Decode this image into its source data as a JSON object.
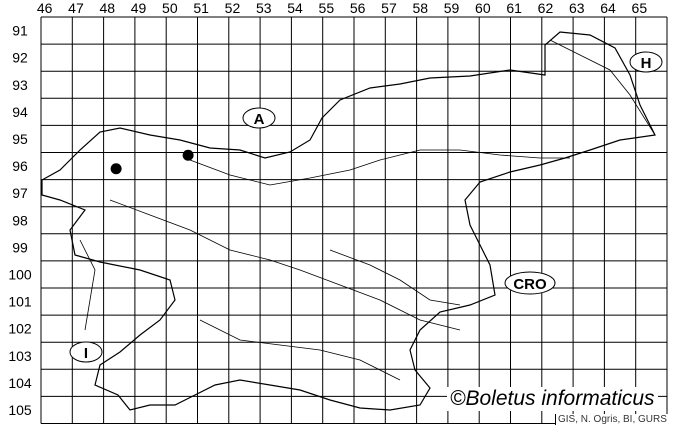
{
  "map": {
    "columns": [
      "46",
      "47",
      "48",
      "49",
      "50",
      "51",
      "52",
      "53",
      "54",
      "55",
      "56",
      "57",
      "58",
      "59",
      "60",
      "61",
      "62",
      "63",
      "64",
      "65"
    ],
    "rows": [
      "91",
      "92",
      "93",
      "94",
      "95",
      "96",
      "97",
      "98",
      "99",
      "100",
      "101",
      "102",
      "103",
      "104",
      "105"
    ],
    "country_labels": [
      {
        "id": "austria",
        "text": "A"
      },
      {
        "id": "hungary",
        "text": "H"
      },
      {
        "id": "croatia",
        "text": "CRO"
      },
      {
        "id": "italy",
        "text": "I"
      }
    ],
    "occurrences": [
      {
        "column": "48",
        "row": "96"
      },
      {
        "column": "50",
        "row": "96"
      }
    ]
  },
  "watermark": "©Boletus informaticus",
  "credits": "GIS, N. Ogris, BI, GURS"
}
